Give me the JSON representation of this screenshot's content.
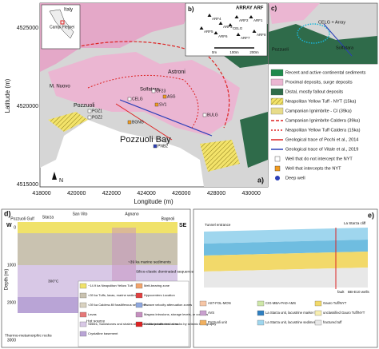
{
  "map": {
    "panel": "a)",
    "x_label": "Longitude (m)",
    "y_label": "Latitude (m)",
    "north": "N",
    "xticks": [
      "418000",
      "420000",
      "422000",
      "424000",
      "426000",
      "428000",
      "430000"
    ],
    "yticks": [
      "4525000",
      "4520000",
      "4515000"
    ],
    "places": [
      "M. Nuovo",
      "Astroni",
      "Pozzuoli",
      "Solfatara",
      "Pozzuoli Bay"
    ],
    "wells": [
      "CF23",
      "ASG",
      "CELG",
      "SV1",
      "POZ1",
      "POZ2",
      "BGNG",
      "BULG",
      "PNB2"
    ],
    "legend": [
      "Recent and active continental sediments",
      "Proximal deposits, surge deposits",
      "Distal, mostly fallout deposits",
      "Neapolitan Yellow Tuff - NYT (15ka)",
      "Campanian Ignimbrite - CI (39ka)",
      "Campanian Ignimbrite Caldera (39ka)",
      "Neapolitan Yellow Tuff Caldera (15ka)",
      "Geological trace of Pochi et al., 2014",
      "Geological trace of Vitale et al., 2019",
      "Well that do not intercept the NYT",
      "Well that intercepts the NYT",
      "Deep well"
    ]
  },
  "inset_italy": {
    "country": "Italy",
    "area": "Campi Flegrei"
  },
  "inset_b": {
    "panel": "b)",
    "title": "ARRAY ARF",
    "stations": [
      "ARF4",
      "ARF3",
      "ARF2",
      "ARF1",
      "CELG",
      "ARF5",
      "ARF6",
      "ARF7",
      "ARF8"
    ],
    "scale": [
      "0m",
      "100m",
      "200m"
    ]
  },
  "inset_c": {
    "panel": "c)",
    "labels": [
      "CELG + Array",
      "Pozzuoli",
      "Solfatara"
    ]
  },
  "panel_d": {
    "panel": "d)",
    "ends": [
      "W",
      "SE"
    ],
    "places": [
      "Pozzuoli Gulf",
      "Starza",
      "San Vito",
      "Agnano",
      "Bagnoli"
    ],
    "y_label": "Depth (m)",
    "depth_ticks": [
      "0",
      "1000",
      "2000",
      "3000"
    ],
    "notes": [
      "~39 ka marine sediments",
      "Silico-clastic dominated sequence",
      "Thermo-metamorphic rocks",
      "Hot source",
      "300°C"
    ],
    "legend": [
      "~14.9 ka Neapolitan Yellow Tuff",
      "<39 ka Tuffs, lavas, marine sediments",
      "<39 ka Caldera-fill fossiliferous sediments",
      "Lavas",
      "Siltites, Sandstones and shales with subordinate tuffs and lavas",
      "Crystalline basement",
      "Melt-bearing zone",
      "Hypocenters Location",
      "P wave velocity attenuation zones",
      "Magma intrusions, storage levels, or conduits",
      "Elastic parameters of rocks by seismic tomography"
    ]
  },
  "panel_e": {
    "panel": "e)",
    "labels": [
      "Tunnel entrance",
      "La Starza cliff",
      "fault",
      "BB-E10 wells"
    ],
    "legend": [
      "AST-FOL-MON",
      "AVS",
      "Pozzuoli unit",
      "CIG-MBA-PAD-AMS",
      "La Starza unit, lacustrine marker level",
      "La Starza unit, lacustrine sediments",
      "Gauro Tuff/NYT",
      "unclassified Gauro Tuff/NYT",
      "fractured tuff"
    ]
  }
}
